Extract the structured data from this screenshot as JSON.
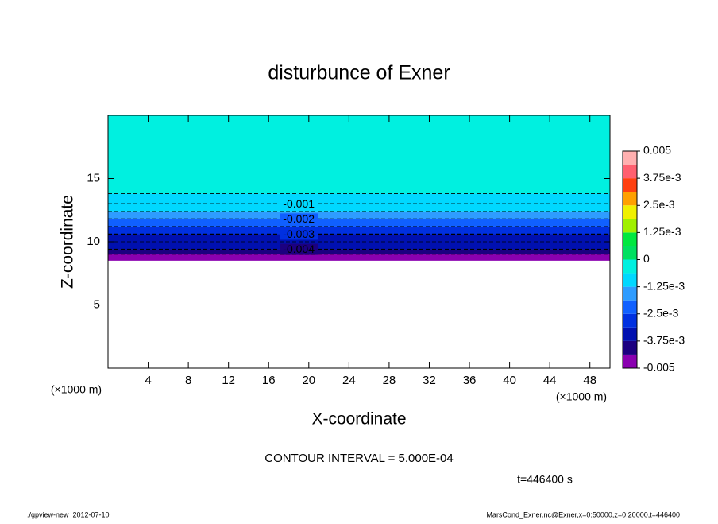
{
  "chart_data": {
    "type": "contour",
    "title": "disturbunce of Exner",
    "x_label": "X-coordinate",
    "y_label": "Z-coordinate",
    "x_unit": "(×1000 m)",
    "y_unit": "(×1000 m)",
    "xlim": [
      0,
      50
    ],
    "xticks": [
      4,
      8,
      12,
      16,
      20,
      24,
      28,
      32,
      36,
      40,
      44,
      48
    ],
    "ylim": [
      0,
      20
    ],
    "yticks": [
      5,
      10,
      15
    ],
    "valid_zmin": 8.5,
    "contours": [
      {
        "level": -0.0005,
        "z": 13.8,
        "labeled": false
      },
      {
        "level": -0.001,
        "z": 13.0,
        "labeled": true
      },
      {
        "level": -0.0015,
        "z": 12.4,
        "labeled": false
      },
      {
        "level": -0.002,
        "z": 11.8,
        "labeled": true
      },
      {
        "level": -0.0025,
        "z": 11.2,
        "labeled": false
      },
      {
        "level": -0.003,
        "z": 10.6,
        "labeled": true
      },
      {
        "level": -0.0035,
        "z": 10.0,
        "labeled": false
      },
      {
        "level": -0.004,
        "z": 9.4,
        "labeled": true
      },
      {
        "level": -0.0045,
        "z": 9.0,
        "labeled": false
      }
    ],
    "colorbar": {
      "lim": [
        -0.005,
        0.005
      ],
      "colors": [
        "#8a00b0",
        "#1c0080",
        "#0010b0",
        "#0030e0",
        "#1060ff",
        "#2e9cff",
        "#00d8ff",
        "#00f0e0",
        "#00e060",
        "#00e840",
        "#a0f000",
        "#f0f000",
        "#ffa000",
        "#ff4010",
        "#ff6070",
        "#ffb0b0"
      ],
      "ticks": [
        0.005,
        {
          "value": 0.00375,
          "label": "3.75e-3"
        },
        {
          "value": 0.0025,
          "label": "2.5e-3"
        },
        {
          "value": 0.00125,
          "label": "1.25e-3"
        },
        0,
        {
          "value": -0.00125,
          "label": "-1.25e-3"
        },
        {
          "value": -0.0025,
          "label": "-2.5e-3"
        },
        {
          "value": -0.00375,
          "label": "-3.75e-3"
        },
        -0.005
      ]
    },
    "contour_interval": "CONTOUR INTERVAL = 5.000E-04",
    "time_label": "t=446400 s",
    "footer_left": "./gpview-new  2012-07-10",
    "footer_right": "MarsCond_Exner.nc@Exner,x=0:50000,z=0:20000,t=446400"
  }
}
